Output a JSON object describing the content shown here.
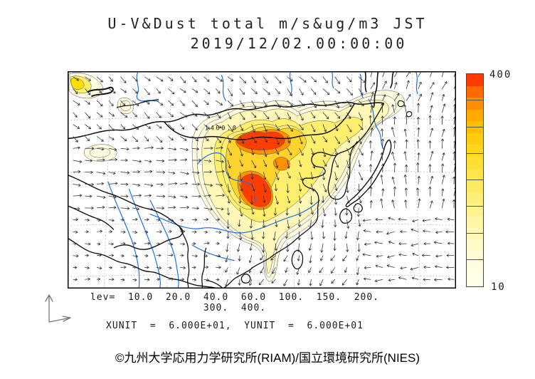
{
  "title": {
    "line1": "U-V&Dust total m/s&ug/m3 JST",
    "line2": "2019/12/02.00:00:00"
  },
  "map": {
    "peak_label": "1400.0"
  },
  "colorbar": {
    "max_label": "400",
    "min_label": "10",
    "colors_bottom_to_top": [
      "#ffffe9",
      "#fffee0",
      "#fffcd4",
      "#fffac6",
      "#fff8b6",
      "#fff5a4",
      "#fff290",
      "#ffee7a",
      "#ffea62",
      "#ffe54a",
      "#ffdf34",
      "#ffd720",
      "#ffcc10",
      "#ffbe04",
      "#ffaa00",
      "#ff8e00",
      "#ff6a00",
      "#ff3c00"
    ],
    "tick_fractions_from_bottom": [
      0.125,
      0.25,
      0.375,
      0.5,
      0.625,
      0.75,
      0.875
    ]
  },
  "legend": {
    "levels_line1": "lev=  10.0  20.0  40.0  60.0  100.  150.  200.",
    "levels_line2": "300.  400.",
    "units_line": "XUNIT  =  6.000E+01,  YUNIT  =  6.000E+01"
  },
  "footer": {
    "copyright": "©九州大学応用力学研究所(RIAM)/国立環境研究所(NIES)"
  },
  "chart_data": {
    "type": "heatmap",
    "title": "U-V&Dust total m/s&ug/m3 JST",
    "subtitle": "2019/12/02.00:00:00",
    "datetime": "2019/12/02 00:00:00",
    "timezone": "JST",
    "variables": {
      "vectors": "U-V wind (m/s)",
      "filled_contours": "Dust total concentration (ug/m3)"
    },
    "contour_levels": [
      10.0,
      20.0,
      40.0,
      60.0,
      100,
      150,
      200,
      300,
      400
    ],
    "colorbar_range": [
      10,
      400
    ],
    "peak_contour_label": 1400.0,
    "vector_scale": {
      "xunit": "6.000E+01",
      "yunit": "6.000E+01"
    },
    "legend_position": "right",
    "grid": "dashed lat-lon graticule",
    "region": "East Asia (China, Mongolia, Korea, Japan)"
  }
}
